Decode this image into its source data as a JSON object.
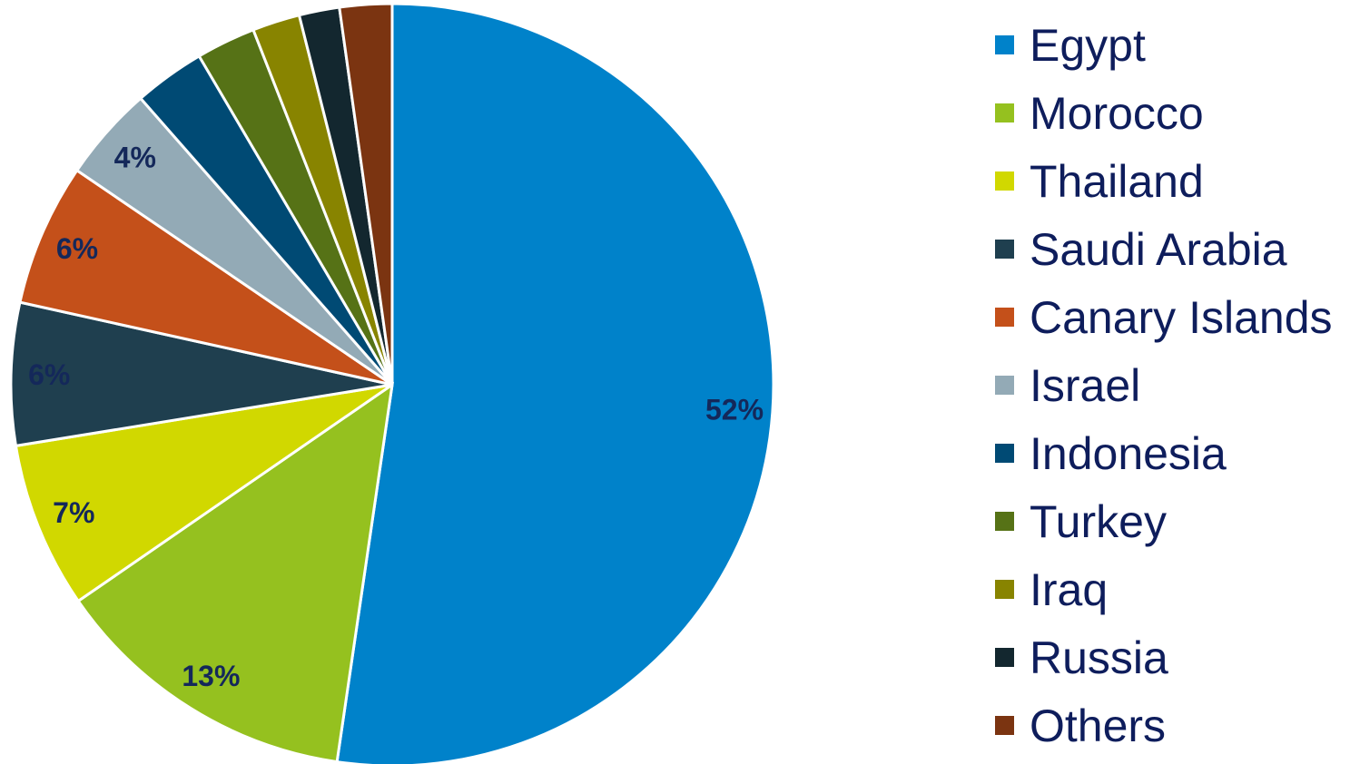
{
  "chart_data": {
    "type": "pie",
    "categories": [
      "Egypt",
      "Morocco",
      "Thailand",
      "Saudi Arabia",
      "Canary Islands",
      "Israel",
      "Indonesia",
      "Turkey",
      "Iraq",
      "Russia",
      "Others"
    ],
    "values": [
      52,
      13,
      7,
      6,
      6,
      4,
      3,
      2.5,
      2,
      1.7,
      2.2
    ],
    "data_labels": [
      "52%",
      "13%",
      "7%",
      "6%",
      "6%",
      "4%",
      "",
      "",
      "",
      "",
      ""
    ],
    "colors": [
      "#0082ca",
      "#95c11f",
      "#d1d800",
      "#1f3f4f",
      "#c4501a",
      "#93aab6",
      "#004a74",
      "#567216",
      "#888400",
      "#13272f",
      "#7b3411"
    ],
    "legend_position": "right",
    "start": "12 o'clock, clockwise"
  }
}
